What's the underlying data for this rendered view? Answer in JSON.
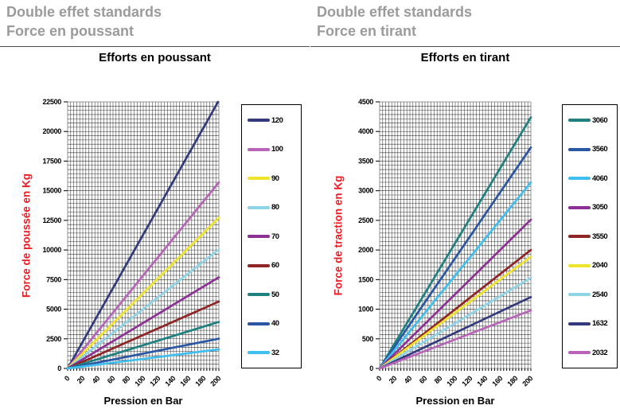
{
  "page": {
    "background": "#FFFFFF",
    "grid_color": "#1A1A1A",
    "heading_color": "#9B9B9B",
    "axis_title_color": "#EC1C24"
  },
  "chart_data": [
    {
      "type": "line",
      "heading1": "Double effet standards",
      "heading2": "Force en poussant",
      "title": "Efforts en poussant",
      "xlabel": "Pression en Bar",
      "ylabel": "Force de poussée  en Kg",
      "xlim": [
        0,
        200
      ],
      "ylim": [
        0,
        22500
      ],
      "x_ticks": [
        0,
        20,
        40,
        60,
        80,
        100,
        120,
        140,
        160,
        180,
        200
      ],
      "y_ticks": [
        0,
        2500,
        5000,
        7500,
        10000,
        12500,
        15000,
        17500,
        20000,
        22500
      ],
      "minor_grid": {
        "x_divisions_per_major": 5,
        "y_divisions_per_major": 7
      },
      "grid": "on",
      "legend_position": "right",
      "series": [
        {
          "name": "120",
          "color": "#333B7E",
          "points": [
            [
              0,
              0
            ],
            [
              200,
              22620
            ]
          ]
        },
        {
          "name": "100",
          "color": "#B864B8",
          "points": [
            [
              0,
              0
            ],
            [
              200,
              15710
            ]
          ]
        },
        {
          "name": "90",
          "color": "#EFE32B",
          "points": [
            [
              0,
              0
            ],
            [
              200,
              12720
            ]
          ]
        },
        {
          "name": "80",
          "color": "#8ED4E6",
          "points": [
            [
              0,
              0
            ],
            [
              200,
              10050
            ]
          ]
        },
        {
          "name": "70",
          "color": "#8D3095",
          "points": [
            [
              0,
              0
            ],
            [
              200,
              7700
            ]
          ]
        },
        {
          "name": "60",
          "color": "#8F2525",
          "points": [
            [
              0,
              0
            ],
            [
              200,
              5650
            ]
          ]
        },
        {
          "name": "50",
          "color": "#1F8080",
          "points": [
            [
              0,
              0
            ],
            [
              200,
              3930
            ]
          ]
        },
        {
          "name": "40",
          "color": "#2A57A5",
          "points": [
            [
              0,
              0
            ],
            [
              200,
              2510
            ]
          ]
        },
        {
          "name": "32",
          "color": "#3FBEF0",
          "points": [
            [
              0,
              0
            ],
            [
              200,
              1610
            ]
          ]
        }
      ]
    },
    {
      "type": "line",
      "heading1": "Double effet standards",
      "heading2": "Force en tirant",
      "title": "Efforts en tirant",
      "xlabel": "Pression en Bar",
      "ylabel": "Force de traction en Kg",
      "xlim": [
        0,
        200
      ],
      "ylim": [
        0,
        4500
      ],
      "x_ticks": [
        0,
        20,
        40,
        60,
        80,
        100,
        120,
        140,
        160,
        180,
        200
      ],
      "y_ticks": [
        0,
        500,
        1000,
        1500,
        2000,
        2500,
        3000,
        3500,
        4000,
        4500
      ],
      "minor_grid": {
        "x_divisions_per_major": 5,
        "y_divisions_per_major": 7
      },
      "grid": "on",
      "legend_position": "right",
      "series": [
        {
          "name": "3060",
          "color": "#1F8080",
          "points": [
            [
              0,
              0
            ],
            [
              200,
              4240
            ]
          ]
        },
        {
          "name": "3560",
          "color": "#2A57A5",
          "points": [
            [
              0,
              0
            ],
            [
              200,
              3730
            ]
          ]
        },
        {
          "name": "4060",
          "color": "#3FBEF0",
          "points": [
            [
              0,
              0
            ],
            [
              200,
              3140
            ]
          ]
        },
        {
          "name": "3050",
          "color": "#8D3095",
          "points": [
            [
              0,
              0
            ],
            [
              200,
              2510
            ]
          ]
        },
        {
          "name": "3550",
          "color": "#8F2525",
          "points": [
            [
              0,
              0
            ],
            [
              200,
              2000
            ]
          ]
        },
        {
          "name": "2040",
          "color": "#EFE32B",
          "points": [
            [
              0,
              0
            ],
            [
              200,
              1885
            ]
          ]
        },
        {
          "name": "2540",
          "color": "#8ED4E6",
          "points": [
            [
              0,
              0
            ],
            [
              200,
              1530
            ]
          ]
        },
        {
          "name": "1632",
          "color": "#333B7E",
          "points": [
            [
              0,
              0
            ],
            [
              200,
              1205
            ]
          ]
        },
        {
          "name": "2032",
          "color": "#B864B8",
          "points": [
            [
              0,
              0
            ],
            [
              200,
              980
            ]
          ]
        }
      ]
    }
  ]
}
